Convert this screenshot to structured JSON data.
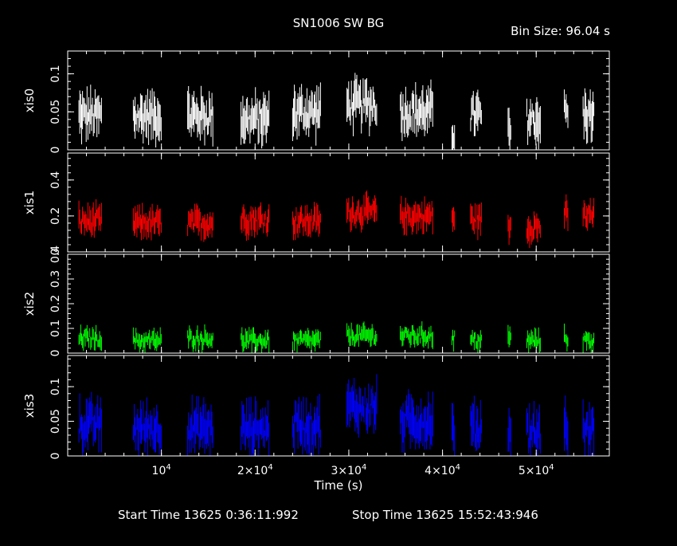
{
  "header": {
    "title": "SN1006 SW BG",
    "bin_size": "Bin Size: 96.04 s"
  },
  "footer": {
    "start": "Start Time 13625  0:36:11:992",
    "stop": "Stop Time 13625 15:52:43:946"
  },
  "colors": {
    "background": "#000000",
    "frame": "#ffffff",
    "xis0": "#ffffff",
    "xis1": "#ff0000",
    "xis2": "#00ff00",
    "xis3": "#0000ff"
  },
  "chart_data": {
    "type": "line",
    "xlabel": "Time (s)",
    "xlim": [
      0,
      57800
    ],
    "x_ticks": [
      {
        "value": 10000,
        "base": "10",
        "exp": "4"
      },
      {
        "value": 20000,
        "base": "2×10",
        "exp": "4"
      },
      {
        "value": 30000,
        "base": "3×10",
        "exp": "4"
      },
      {
        "value": 40000,
        "base": "4×10",
        "exp": "4"
      },
      {
        "value": 50000,
        "base": "5×10",
        "exp": "4"
      }
    ],
    "segments": [
      [
        1200,
        3600
      ],
      [
        7000,
        10000
      ],
      [
        12800,
        15500
      ],
      [
        18500,
        21500
      ],
      [
        24000,
        27000
      ],
      [
        29800,
        33000
      ],
      [
        35500,
        39000
      ],
      [
        41000,
        41300
      ],
      [
        43000,
        44200
      ],
      [
        47000,
        47300
      ],
      [
        49000,
        50500
      ],
      [
        53000,
        53400
      ],
      [
        55000,
        56200
      ]
    ],
    "series": [
      {
        "name": "xis0",
        "color": "#ffffff",
        "ylim": [
          0,
          0.13
        ],
        "yticks": [
          0,
          0.05,
          0.1
        ],
        "ytick_labels": [
          "0",
          "0.05",
          "0.1"
        ],
        "seg_means": [
          0.045,
          0.045,
          0.045,
          0.04,
          0.05,
          0.06,
          0.05,
          0.02,
          0.045,
          0.02,
          0.04,
          0.05,
          0.045
        ],
        "noise": 0.022,
        "max": 0.13
      },
      {
        "name": "xis1",
        "color": "#ff0000",
        "ylim": [
          0,
          0.55
        ],
        "yticks": [
          0,
          0.2,
          0.4
        ],
        "ytick_labels": [
          "0",
          "0.2",
          "0.4"
        ],
        "seg_means": [
          0.17,
          0.16,
          0.16,
          0.18,
          0.17,
          0.22,
          0.2,
          0.19,
          0.18,
          0.14,
          0.14,
          0.2,
          0.2
        ],
        "noise": 0.06,
        "max": 0.55
      },
      {
        "name": "xis2",
        "color": "#00ff00",
        "ylim": [
          0,
          0.4
        ],
        "yticks": [
          0,
          0.1,
          0.2,
          0.3,
          0.4
        ],
        "ytick_labels": [
          "0",
          "0.1",
          "0.2",
          "0.3",
          "0.4"
        ],
        "seg_means": [
          0.06,
          0.05,
          0.06,
          0.05,
          0.05,
          0.07,
          0.07,
          0.06,
          0.05,
          0.06,
          0.05,
          0.06,
          0.05
        ],
        "noise": 0.03,
        "max": 0.4
      },
      {
        "name": "xis3",
        "color": "#0000ff",
        "ylim": [
          0,
          0.145
        ],
        "yticks": [
          0,
          0.05,
          0.1
        ],
        "ytick_labels": [
          "0",
          "0.05",
          "0.1"
        ],
        "seg_means": [
          0.045,
          0.04,
          0.04,
          0.04,
          0.045,
          0.07,
          0.05,
          0.04,
          0.04,
          0.04,
          0.035,
          0.04,
          0.035
        ],
        "noise": 0.025,
        "max": 0.145
      }
    ]
  }
}
